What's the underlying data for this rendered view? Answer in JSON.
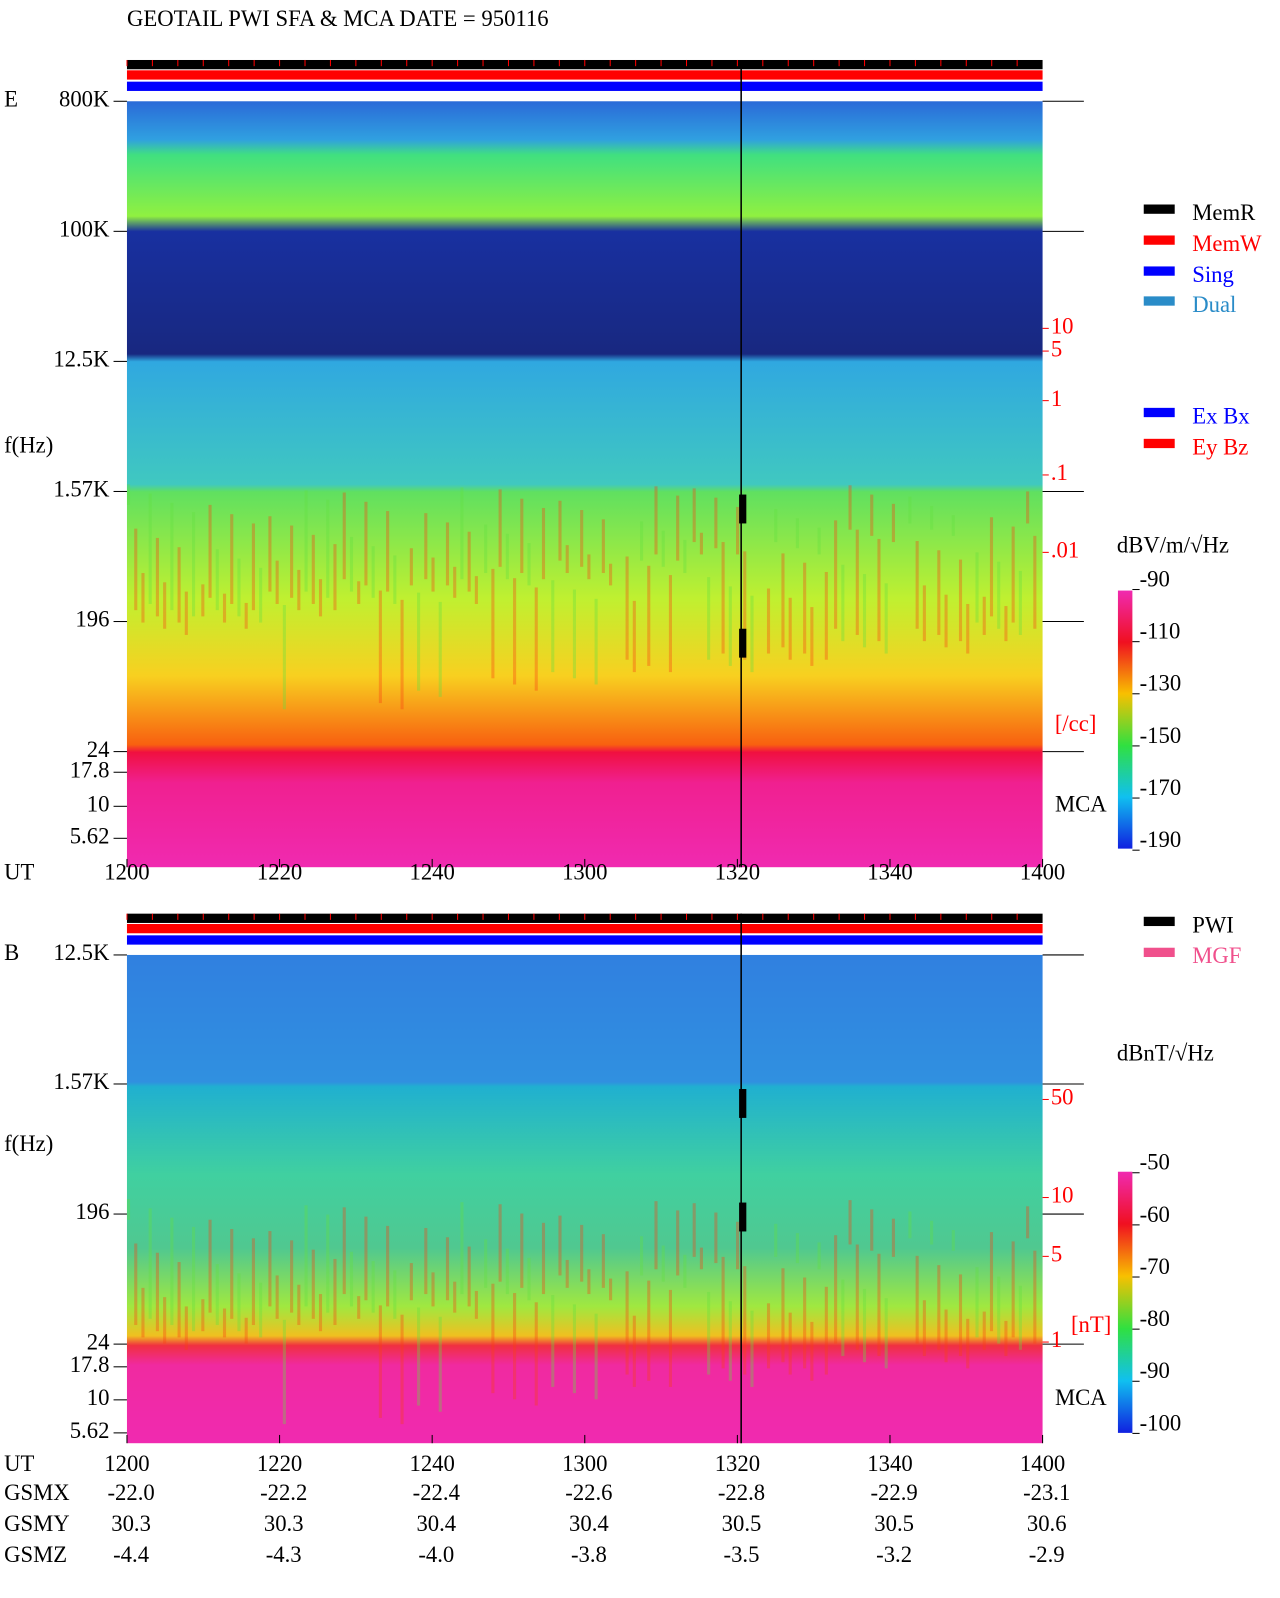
{
  "title": "GEOTAIL  PWI SFA & MCA   DATE = 950116",
  "x_label": "UT",
  "xticks": [
    "1200",
    "1220",
    "1240",
    "1300",
    "1320",
    "1340",
    "1400"
  ],
  "panels": [
    {
      "label": "E",
      "ylabel": "f(Hz)",
      "yticks": [
        "800K",
        "100K",
        "12.5K",
        "1.57K",
        "196",
        "24",
        "17.8",
        "10",
        "5.62"
      ],
      "unit": "dBV/m/√Hz",
      "colorbar_ticks": [
        "-90",
        "-110",
        "-130",
        "-150",
        "-170",
        "-190"
      ],
      "density_ticks": [
        "10",
        "5",
        "1",
        ".1",
        ".01"
      ],
      "density_unit": "[/cc]",
      "mca": "MCA",
      "legend": [
        {
          "name": "MemR",
          "color": "#000"
        },
        {
          "name": "MemW",
          "color": "#f00"
        },
        {
          "name": "Sing",
          "color": "#00f"
        },
        {
          "name": "Dual",
          "color": "#2a8cc8"
        }
      ],
      "legend2": [
        {
          "name": "Ex Bx",
          "color": "#00f"
        },
        {
          "name": "Ey Bz",
          "color": "#f00"
        }
      ]
    },
    {
      "label": "B",
      "ylabel": "f(Hz)",
      "yticks": [
        "12.5K",
        "1.57K",
        "196",
        "24",
        "17.8",
        "10",
        "5.62"
      ],
      "unit": "dBnT/√Hz",
      "colorbar_ticks": [
        "-50",
        "-60",
        "-70",
        "-80",
        "-90",
        "-100"
      ],
      "density_ticks": [
        "50",
        "10",
        "5",
        "1"
      ],
      "density_unit": "[nT]",
      "mca": "MCA",
      "legend": [
        {
          "name": "PWI",
          "color": "#000"
        },
        {
          "name": "MGF",
          "color": "#f0508c"
        }
      ]
    }
  ],
  "orbit": [
    {
      "name": "GSMX",
      "values": [
        "-22.0",
        "-22.2",
        "-22.4",
        "-22.6",
        "-22.8",
        "-22.9",
        "-23.1"
      ]
    },
    {
      "name": "GSMY",
      "values": [
        "30.3",
        "30.3",
        "30.4",
        "30.4",
        "30.5",
        "30.5",
        "30.6"
      ]
    },
    {
      "name": "GSMZ",
      "values": [
        "-4.4",
        "-4.3",
        "-4.0",
        "-3.8",
        "-3.5",
        "-3.2",
        "-2.9"
      ]
    }
  ]
}
